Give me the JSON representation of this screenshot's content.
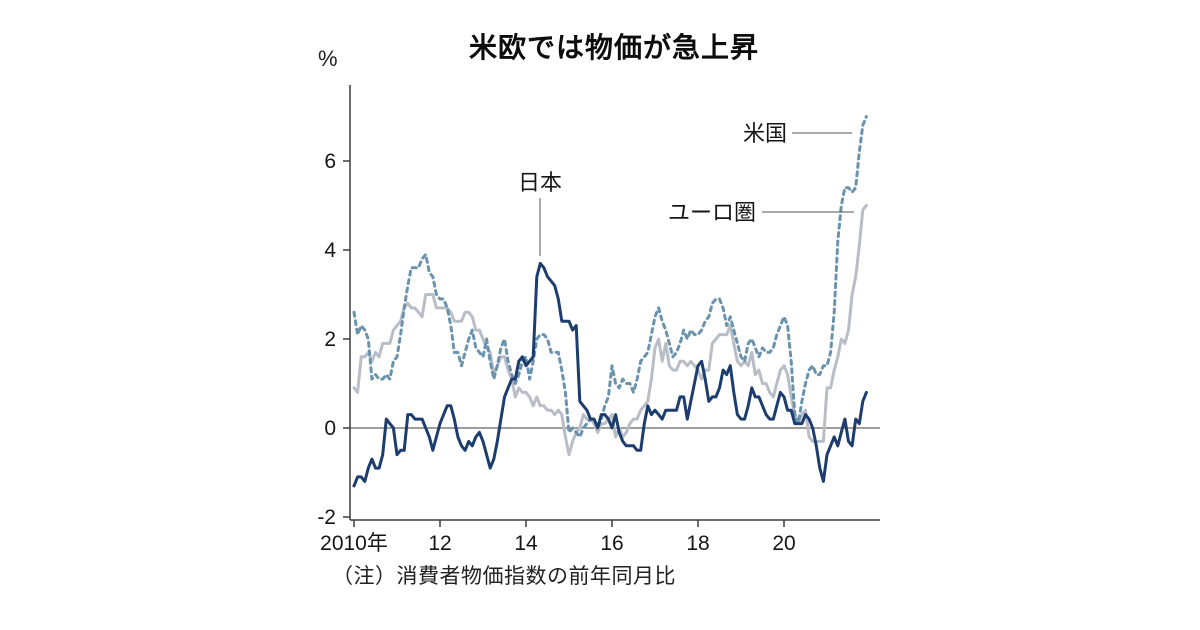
{
  "chart_data": {
    "type": "line",
    "title": "米欧では物価が急上昇",
    "unit_label": "%",
    "note": "（注）消費者物価指数の前年同月比",
    "x_axis": {
      "ticks": [
        2010,
        2012,
        2014,
        2016,
        2018,
        2020
      ],
      "tick_labels": [
        "2010年",
        "12",
        "14",
        "16",
        "18",
        "20"
      ],
      "range": [
        2010,
        2022.3
      ],
      "grid": false
    },
    "y_axis": {
      "ticks": [
        -2,
        0,
        2,
        4,
        6
      ],
      "tick_labels": [
        "-2",
        "0",
        "2",
        "4",
        "6"
      ],
      "range": [
        -2,
        7.7
      ],
      "grid": false,
      "zero_line": true
    },
    "series": [
      {
        "id": "euro",
        "name": "ユーロ圏",
        "color": "#b9bdc7",
        "style": "solid",
        "start_year": 2010,
        "interval_months": 1,
        "values": [
          0.9,
          0.8,
          1.6,
          1.6,
          1.7,
          1.5,
          1.7,
          1.6,
          1.9,
          1.9,
          1.9,
          2.2,
          2.3,
          2.4,
          2.7,
          2.8,
          2.7,
          2.7,
          2.6,
          2.5,
          3.0,
          3.0,
          3.0,
          2.7,
          2.7,
          2.7,
          2.7,
          2.6,
          2.4,
          2.4,
          2.4,
          2.6,
          2.6,
          2.5,
          2.2,
          2.2,
          2.0,
          1.8,
          1.7,
          1.2,
          1.4,
          1.6,
          1.6,
          1.3,
          1.1,
          0.7,
          0.9,
          0.8,
          0.8,
          0.7,
          0.5,
          0.7,
          0.5,
          0.5,
          0.4,
          0.4,
          0.3,
          0.4,
          0.3,
          -0.2,
          -0.6,
          -0.3,
          -0.1,
          0.0,
          0.3,
          0.2,
          0.2,
          0.1,
          -0.1,
          0.1,
          0.1,
          0.2,
          0.3,
          -0.2,
          0.0,
          -0.2,
          -0.1,
          0.1,
          0.2,
          0.2,
          0.4,
          0.5,
          0.6,
          1.1,
          1.8,
          2.0,
          1.5,
          1.9,
          1.4,
          1.3,
          1.3,
          1.5,
          1.5,
          1.4,
          1.5,
          1.4,
          1.3,
          1.1,
          1.3,
          1.3,
          1.9,
          2.0,
          2.1,
          2.1,
          2.1,
          2.3,
          1.9,
          1.5,
          1.4,
          1.5,
          1.4,
          1.7,
          1.2,
          1.3,
          1.0,
          1.0,
          0.8,
          0.7,
          1.0,
          1.3,
          1.4,
          1.2,
          0.7,
          0.3,
          0.1,
          0.3,
          0.4,
          -0.2,
          -0.3,
          -0.3,
          -0.3,
          -0.3,
          0.9,
          0.9,
          1.3,
          1.6,
          2.0,
          1.9,
          2.2,
          3.0,
          3.4,
          4.1,
          4.9,
          5.0
        ]
      },
      {
        "id": "us",
        "name": "米国",
        "color": "#6a93ad",
        "style": "dashed",
        "start_year": 2010,
        "interval_months": 1,
        "values": [
          2.6,
          2.1,
          2.3,
          2.2,
          2.0,
          1.1,
          1.2,
          1.1,
          1.1,
          1.2,
          1.1,
          1.5,
          1.6,
          2.1,
          2.7,
          3.2,
          3.6,
          3.6,
          3.6,
          3.8,
          3.9,
          3.5,
          3.4,
          3.0,
          2.9,
          2.9,
          2.7,
          2.3,
          1.7,
          1.7,
          1.4,
          1.7,
          2.0,
          2.2,
          1.8,
          1.7,
          1.6,
          2.0,
          1.5,
          1.1,
          1.4,
          1.8,
          2.0,
          1.5,
          1.2,
          1.0,
          1.2,
          1.5,
          1.6,
          1.1,
          1.5,
          2.0,
          2.1,
          2.1,
          2.0,
          1.7,
          1.7,
          1.7,
          1.3,
          0.8,
          -0.1,
          0.0,
          -0.1,
          -0.2,
          0.0,
          0.1,
          0.2,
          0.2,
          0.0,
          0.2,
          0.5,
          0.7,
          1.4,
          1.0,
          0.9,
          1.1,
          1.0,
          1.0,
          0.8,
          1.1,
          1.5,
          1.6,
          1.7,
          2.1,
          2.5,
          2.7,
          2.4,
          2.2,
          1.9,
          1.6,
          1.7,
          1.9,
          2.2,
          2.0,
          2.2,
          2.1,
          2.1,
          2.2,
          2.4,
          2.5,
          2.8,
          2.9,
          2.9,
          2.7,
          2.3,
          2.5,
          2.2,
          1.9,
          1.6,
          1.5,
          1.9,
          2.0,
          1.8,
          1.6,
          1.8,
          1.7,
          1.7,
          1.8,
          2.1,
          2.3,
          2.5,
          2.3,
          1.5,
          0.3,
          0.1,
          0.6,
          1.0,
          1.3,
          1.4,
          1.2,
          1.2,
          1.4,
          1.4,
          1.7,
          2.6,
          4.2,
          5.0,
          5.4,
          5.4,
          5.3,
          5.4,
          6.2,
          6.8,
          7.0
        ]
      },
      {
        "id": "japan",
        "name": "日本",
        "color": "#1c3d6e",
        "style": "solid",
        "start_year": 2010,
        "interval_months": 1,
        "values": [
          -1.3,
          -1.1,
          -1.1,
          -1.2,
          -0.9,
          -0.7,
          -0.9,
          -0.9,
          -0.6,
          0.2,
          0.1,
          0.0,
          -0.6,
          -0.5,
          -0.5,
          0.3,
          0.3,
          0.2,
          0.2,
          0.2,
          0.0,
          -0.2,
          -0.5,
          -0.2,
          0.1,
          0.3,
          0.5,
          0.5,
          0.2,
          -0.2,
          -0.4,
          -0.5,
          -0.3,
          -0.4,
          -0.2,
          -0.1,
          -0.3,
          -0.6,
          -0.9,
          -0.7,
          -0.3,
          0.2,
          0.7,
          0.9,
          1.1,
          1.1,
          1.5,
          1.6,
          1.4,
          1.5,
          1.6,
          3.4,
          3.7,
          3.6,
          3.4,
          3.3,
          3.2,
          2.9,
          2.4,
          2.4,
          2.4,
          2.2,
          2.3,
          0.6,
          0.5,
          0.4,
          0.2,
          0.2,
          0.0,
          0.3,
          0.3,
          0.2,
          0.0,
          0.3,
          -0.1,
          -0.3,
          -0.4,
          -0.4,
          -0.4,
          -0.5,
          -0.5,
          0.1,
          0.5,
          0.3,
          0.4,
          0.3,
          0.2,
          0.4,
          0.4,
          0.4,
          0.4,
          0.7,
          0.7,
          0.2,
          0.6,
          1.0,
          1.4,
          1.5,
          1.1,
          0.6,
          0.7,
          0.7,
          0.9,
          1.3,
          1.2,
          1.4,
          0.8,
          0.3,
          0.2,
          0.2,
          0.5,
          0.9,
          0.7,
          0.7,
          0.5,
          0.3,
          0.2,
          0.2,
          0.5,
          0.8,
          0.7,
          0.4,
          0.4,
          0.1,
          0.1,
          0.1,
          0.3,
          0.2,
          0.0,
          -0.4,
          -0.9,
          -1.2,
          -0.6,
          -0.4,
          -0.2,
          -0.4,
          -0.1,
          0.2,
          -0.3,
          -0.4,
          0.2,
          0.1,
          0.6,
          0.8
        ]
      }
    ],
    "annotations": [
      {
        "id": "jp",
        "label": "日本"
      },
      {
        "id": "us",
        "label": "米国"
      },
      {
        "id": "eu",
        "label": "ユーロ圏"
      }
    ]
  }
}
